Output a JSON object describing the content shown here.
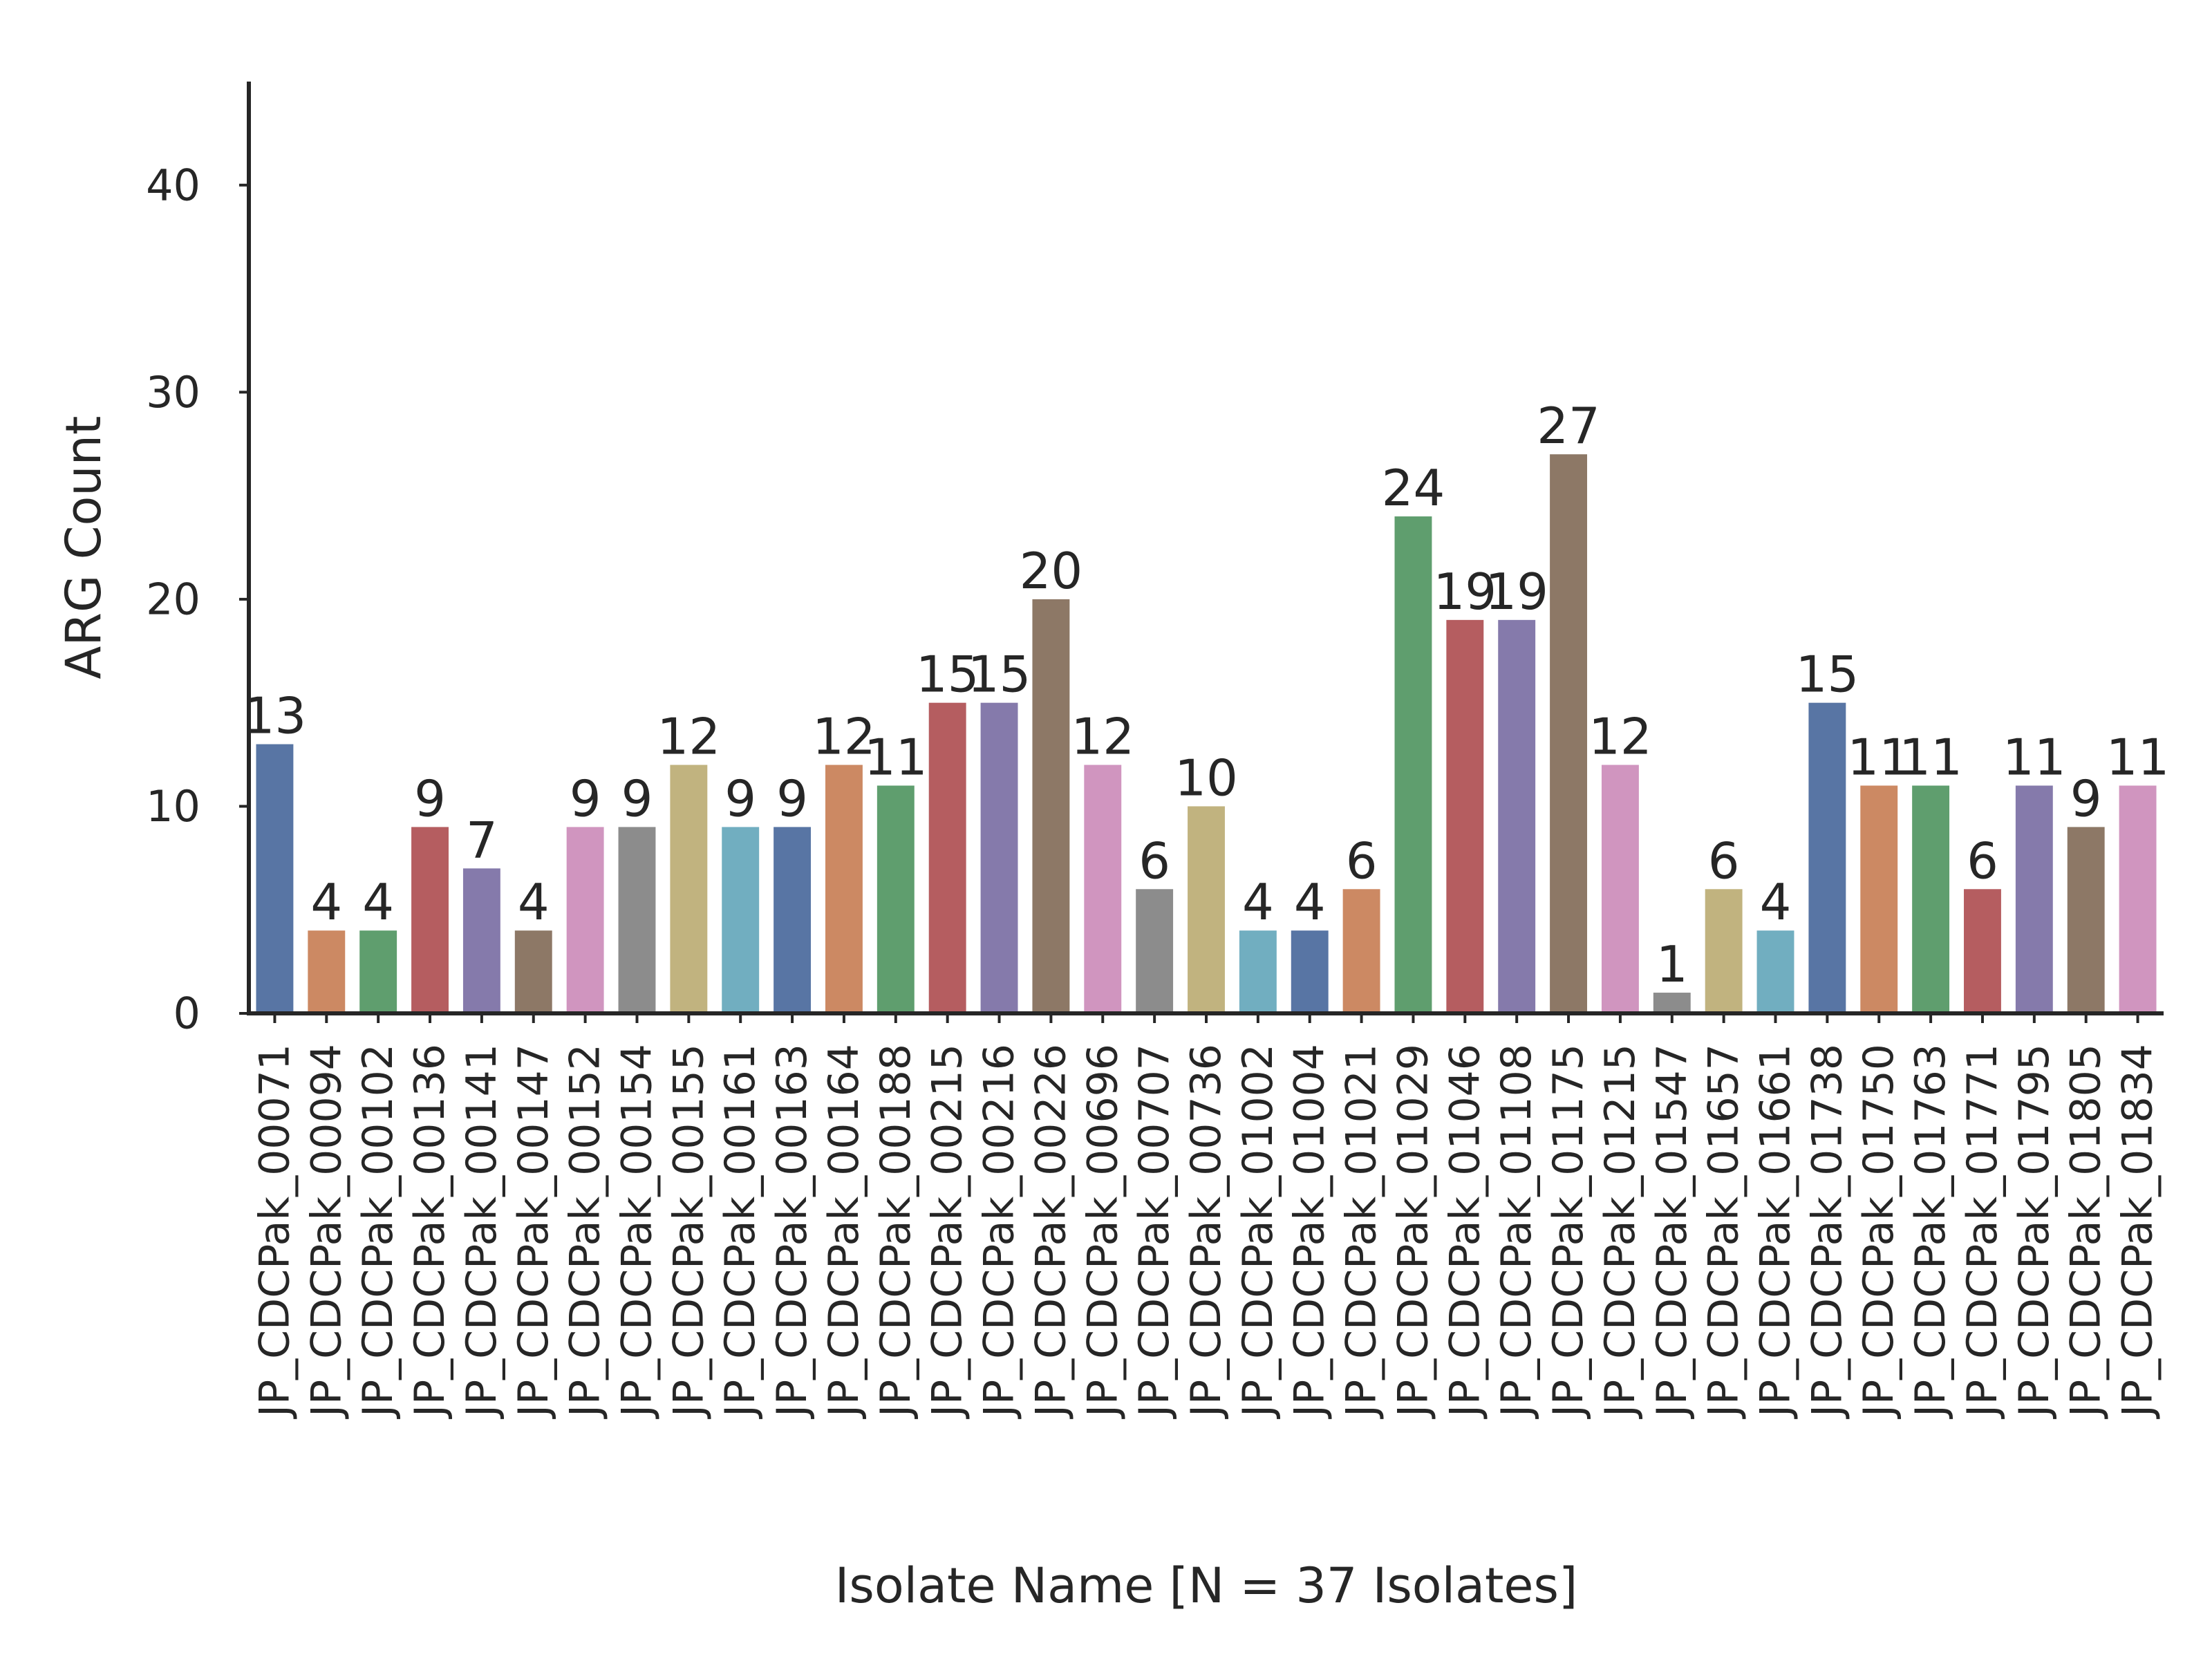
{
  "chart_data": {
    "type": "bar",
    "xlabel": "Isolate Name [N = 37 Isolates]",
    "ylabel": "ARG Count",
    "ylim": [
      0,
      45
    ],
    "yticks": [
      0,
      10,
      20,
      30,
      40
    ],
    "grid": false,
    "legend": "none",
    "categories": [
      "JP_CDCPak_00071",
      "JP_CDCPak_00094",
      "JP_CDCPak_00102",
      "JP_CDCPak_00136",
      "JP_CDCPak_00141",
      "JP_CDCPak_00147",
      "JP_CDCPak_00152",
      "JP_CDCPak_00154",
      "JP_CDCPak_00155",
      "JP_CDCPak_00161",
      "JP_CDCPak_00163",
      "JP_CDCPak_00164",
      "JP_CDCPak_00188",
      "JP_CDCPak_00215",
      "JP_CDCPak_00216",
      "JP_CDCPak_00226",
      "JP_CDCPak_00696",
      "JP_CDCPak_00707",
      "JP_CDCPak_00736",
      "JP_CDCPak_01002",
      "JP_CDCPak_01004",
      "JP_CDCPak_01021",
      "JP_CDCPak_01029",
      "JP_CDCPak_01046",
      "JP_CDCPak_01108",
      "JP_CDCPak_01175",
      "JP_CDCPak_01215",
      "JP_CDCPak_01547",
      "JP_CDCPak_01657",
      "JP_CDCPak_01661",
      "JP_CDCPak_01738",
      "JP_CDCPak_01750",
      "JP_CDCPak_01763",
      "JP_CDCPak_01771",
      "JP_CDCPak_01795",
      "JP_CDCPak_01805",
      "JP_CDCPak_01834"
    ],
    "values": [
      13,
      4,
      4,
      9,
      7,
      4,
      9,
      9,
      12,
      9,
      9,
      12,
      11,
      15,
      15,
      20,
      12,
      6,
      10,
      4,
      4,
      6,
      24,
      19,
      19,
      27,
      12,
      1,
      6,
      4,
      15,
      11,
      11,
      6,
      11,
      9,
      11
    ],
    "palette": [
      "#5875a4",
      "#cc8963",
      "#5f9e6e",
      "#b55d60",
      "#857aab",
      "#8d7866",
      "#d095bf",
      "#8c8c8c",
      "#c1b37f",
      "#71aec0"
    ]
  }
}
